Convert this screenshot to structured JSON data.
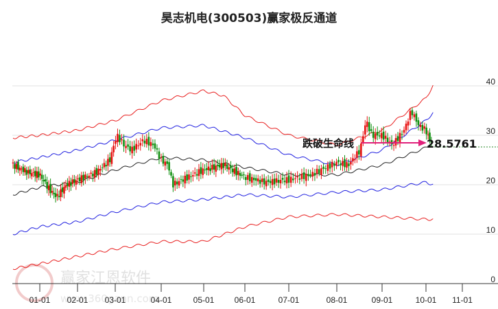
{
  "chart_data": {
    "type": "line",
    "title": "昊志机电(300503)赢家极反通道",
    "ylim": [
      0,
      40
    ],
    "yticks": [
      0,
      10,
      20,
      30,
      40
    ],
    "xticks": [
      {
        "label": "01-01",
        "day": 0
      },
      {
        "label": "02-01",
        "day": 31
      },
      {
        "label": "03-01",
        "day": 59
      },
      {
        "label": "04-01",
        "day": 90
      },
      {
        "label": "05-01",
        "day": 120
      },
      {
        "label": "06-01",
        "day": 151
      },
      {
        "label": "07-01",
        "day": 181
      },
      {
        "label": "08-01",
        "day": 212
      },
      {
        "label": "09-01",
        "day": 243
      },
      {
        "label": "10-01",
        "day": 273
      },
      {
        "label": "11-01",
        "day": 304
      }
    ],
    "price": {
      "days": [
        -22,
        -10,
        0,
        8,
        14,
        22,
        31,
        45,
        55,
        60,
        65,
        70,
        78,
        85,
        90,
        95,
        98,
        105,
        120,
        135,
        151,
        165,
        181,
        195,
        212,
        220,
        228,
        232,
        236,
        243,
        250,
        258,
        263,
        268,
        273,
        276,
        279
      ],
      "close": [
        24,
        22.5,
        22,
        19,
        17.5,
        20,
        21,
        22.5,
        25,
        30,
        28,
        27,
        29,
        28,
        25,
        24,
        20,
        21,
        23,
        24,
        21.5,
        20.5,
        21,
        22,
        24.5,
        24,
        27,
        33,
        30,
        30,
        28,
        31,
        35,
        32,
        31,
        29,
        28.5
      ]
    },
    "series": [
      {
        "name": "upper-outer",
        "color": "#e82020",
        "days": [
          -22,
          0,
          31,
          59,
          90,
          120,
          135,
          151,
          181,
          212,
          243,
          273,
          279
        ],
        "values": [
          29.5,
          30,
          31,
          33,
          37,
          39,
          38,
          34,
          30,
          28,
          31,
          37.5,
          40
        ]
      },
      {
        "name": "upper-inner",
        "color": "#2020e0",
        "days": [
          -22,
          0,
          31,
          59,
          90,
          120,
          151,
          181,
          212,
          243,
          273,
          279
        ],
        "values": [
          24.5,
          25.5,
          27,
          29,
          31.5,
          32,
          29.5,
          26,
          24,
          27,
          33,
          34.5
        ]
      },
      {
        "name": "middle",
        "color": "#222222",
        "days": [
          -22,
          0,
          31,
          59,
          90,
          120,
          151,
          181,
          212,
          243,
          273,
          279
        ],
        "values": [
          18,
          19.5,
          20.5,
          23,
          25.5,
          25,
          23.5,
          22,
          22,
          24,
          27.5,
          28.5
        ]
      },
      {
        "name": "lower-inner",
        "color": "#2020e0",
        "days": [
          -22,
          0,
          31,
          59,
          90,
          120,
          151,
          181,
          212,
          243,
          273,
          279
        ],
        "values": [
          10,
          11.5,
          12.5,
          14.5,
          16.5,
          17,
          18,
          17.5,
          18.5,
          19,
          20.5,
          20
        ]
      },
      {
        "name": "lower-outer",
        "color": "#e82020",
        "days": [
          -22,
          0,
          31,
          59,
          90,
          120,
          151,
          181,
          212,
          243,
          273,
          279
        ],
        "values": [
          3,
          4,
          5.5,
          7,
          8.5,
          8.5,
          11.5,
          13.5,
          14,
          13.5,
          13,
          13
        ]
      }
    ],
    "annotation": {
      "label": "跌破生命线",
      "value": "28.5761",
      "arrow_color": "#e0207a"
    },
    "watermark": {
      "brand": "赢家江恩软件",
      "url": "www.360gann.com",
      "seal": "江赢恩家"
    }
  }
}
